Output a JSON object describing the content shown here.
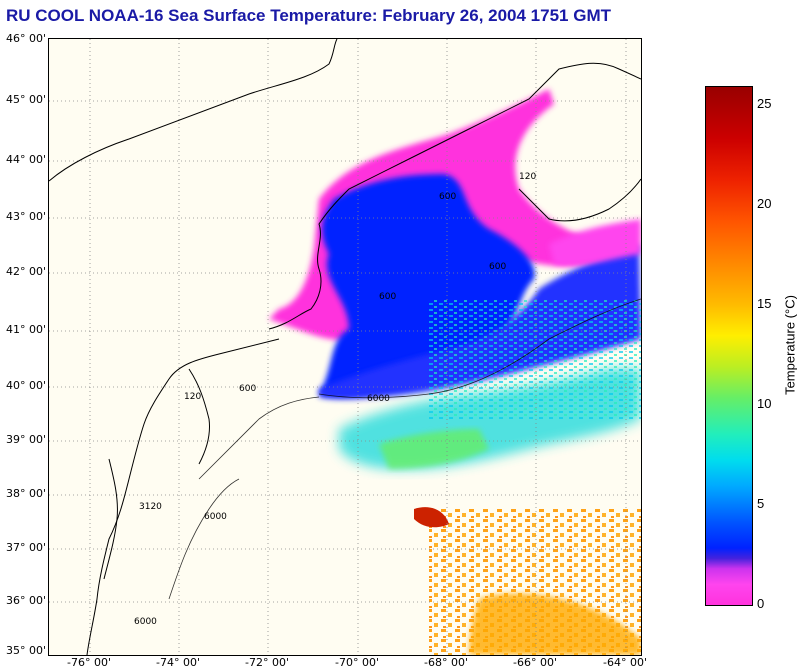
{
  "title": "RU COOL  NOAA-16  Sea Surface Temperature:  February 26, 2004 1751 GMT",
  "latitude_labels": [
    "46° 00'",
    "45° 00'",
    "44° 00'",
    "43° 00'",
    "42° 00'",
    "41° 00'",
    "40° 00'",
    "39° 00'",
    "38° 00'",
    "37° 00'",
    "36° 00'",
    "35° 00'"
  ],
  "longitude_labels": [
    "-76° 00'",
    "-74° 00'",
    "-72° 00'",
    "-70° 00'",
    "-68° 00'",
    "-66° 00'",
    "-64° 00'"
  ],
  "isobath_labels": {
    "d600": "600",
    "d6000": "6000",
    "d120": "120",
    "d3120": "3120"
  },
  "colorbar": {
    "label": "Temperature (°C)",
    "ticks": [
      "25",
      "20",
      "15",
      "10",
      "5",
      "0"
    ],
    "tick_values": [
      25,
      20,
      15,
      10,
      5,
      0
    ],
    "min": 0,
    "max": 26
  },
  "colors": {
    "title": "#1a1aa6",
    "land": "#fffdf2",
    "cold": "#ff33dd",
    "cool": "#0022ff",
    "mid": "#00ccdd",
    "warm": "#ffaa00",
    "hot": "#cc2200"
  }
}
